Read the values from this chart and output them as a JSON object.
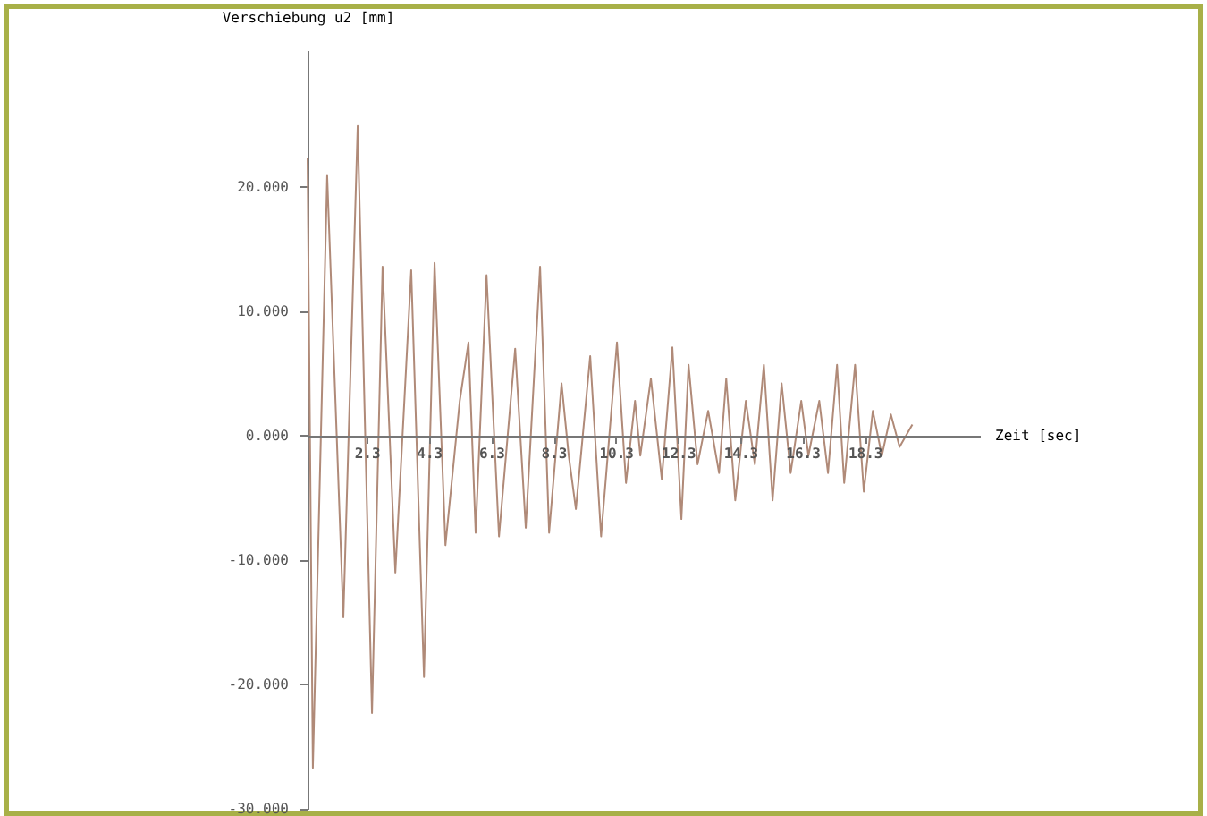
{
  "chart_data": {
    "type": "line",
    "xlabel": "Zeit [sec]",
    "ylabel": "Verschiebung u2 [mm]",
    "x": [
      0.4,
      0.57,
      1.03,
      1.55,
      2.01,
      2.47,
      2.81,
      3.22,
      3.73,
      4.14,
      4.48,
      4.83,
      5.29,
      5.57,
      5.8,
      6.15,
      6.55,
      7.07,
      7.41,
      7.87,
      8.16,
      8.56,
      8.79,
      9.02,
      9.48,
      9.83,
      10.34,
      10.63,
      10.92,
      11.09,
      11.43,
      11.78,
      12.12,
      12.41,
      12.64,
      12.93,
      13.27,
      13.62,
      13.85,
      14.14,
      14.48,
      14.77,
      15.06,
      15.34,
      15.63,
      15.92,
      16.26,
      16.49,
      16.84,
      17.12,
      17.41,
      17.64,
      17.99,
      18.27,
      18.56,
      18.85,
      19.14,
      19.42,
      19.83
    ],
    "series": [
      {
        "color": "#b08a78",
        "values": [
          22.3,
          -26.7,
          20.9,
          -14.6,
          24.9,
          -22.3,
          13.6,
          -11.0,
          13.3,
          -19.4,
          13.9,
          -8.8,
          2.8,
          7.5,
          -7.8,
          12.9,
          -8.1,
          7.0,
          -7.4,
          13.6,
          -7.8,
          4.2,
          -1.6,
          -5.9,
          6.4,
          -8.1,
          7.5,
          -3.8,
          2.8,
          -1.6,
          4.6,
          -3.5,
          7.1,
          -6.7,
          5.7,
          -2.3,
          2.0,
          -3.0,
          4.6,
          -5.2,
          2.8,
          -2.3,
          5.7,
          -5.2,
          4.2,
          -3.0,
          2.8,
          -1.6,
          2.8,
          -3.0,
          5.7,
          -3.8,
          5.7,
          -4.5,
          2.0,
          -1.6,
          1.7,
          -0.9,
          0.9
        ]
      }
    ],
    "xlim": [
      0.4,
      22
    ],
    "xticks": [
      2.3,
      4.3,
      6.3,
      8.3,
      10.3,
      12.3,
      14.3,
      16.3,
      18.3
    ],
    "ylim": [
      -30,
      31
    ],
    "yticks": [
      {
        "value": 20,
        "label": "20.000"
      },
      {
        "value": 10,
        "label": "10.000"
      },
      {
        "value": 0,
        "label": "0.000"
      },
      {
        "value": -10,
        "label": "-10.000"
      },
      {
        "value": -20,
        "label": "-20.000"
      },
      {
        "value": -30,
        "label": "-30.000"
      }
    ],
    "grid": false,
    "marker": "none",
    "line_style": "solid"
  }
}
